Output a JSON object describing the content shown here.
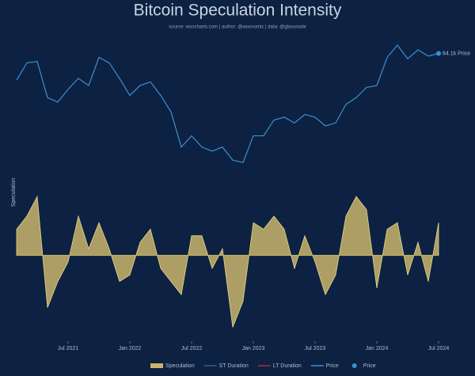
{
  "chart_data": {
    "type": "area-line",
    "title": "Bitcoin Speculation Intensity",
    "subtitle": "source: woocharts.com | author: @woonomic | data: @glassnode",
    "ylabel": "Speculation",
    "x": [
      "2021-02",
      "2021-03",
      "2021-04",
      "2021-05",
      "2021-06",
      "2021-07",
      "2021-08",
      "2021-09",
      "2021-10",
      "2021-11",
      "2021-12",
      "2022-01",
      "2022-02",
      "2022-03",
      "2022-04",
      "2022-05",
      "2022-06",
      "2022-07",
      "2022-08",
      "2022-09",
      "2022-10",
      "2022-11",
      "2022-12",
      "2023-01",
      "2023-02",
      "2023-03",
      "2023-04",
      "2023-05",
      "2023-06",
      "2023-07",
      "2023-08",
      "2023-09",
      "2023-10",
      "2023-11",
      "2023-12",
      "2024-01",
      "2024-02",
      "2024-03",
      "2024-04",
      "2024-05",
      "2024-06",
      "2024-07"
    ],
    "xticks": [
      {
        "value": "2021-07",
        "label": "Jul 2021"
      },
      {
        "value": "2022-01",
        "label": "Jan 2022"
      },
      {
        "value": "2022-07",
        "label": "Jul 2022"
      },
      {
        "value": "2023-01",
        "label": "Jan 2023"
      },
      {
        "value": "2023-07",
        "label": "Jul 2023"
      },
      {
        "value": "2024-01",
        "label": "Jan 2024"
      },
      {
        "value": "2024-07",
        "label": "Jul 2024"
      }
    ],
    "series": [
      {
        "color": "#c9b46a",
        "axis": "y",
        "values": [
          0.4,
          0.6,
          0.9,
          -0.8,
          -0.4,
          -0.1,
          0.6,
          0.1,
          0.5,
          0.1,
          -0.4,
          -0.3,
          0.2,
          0.4,
          -0.2,
          -0.4,
          -0.6,
          0.3,
          0.3,
          -0.2,
          0.1,
          -1.1,
          -0.7,
          0.5,
          0.4,
          0.6,
          0.4,
          -0.2,
          0.3,
          -0.1,
          -0.6,
          -0.3,
          0.6,
          0.9,
          0.7,
          -0.5,
          0.4,
          0.5,
          -0.3,
          0.2,
          -0.4,
          0.5
        ]
      },
      {
        "color": "#3d8fd1",
        "axis": "y2",
        "values": [
          46,
          57,
          58,
          37,
          35,
          41,
          47,
          43,
          61,
          57,
          47,
          38,
          43,
          45,
          38,
          31,
          20,
          23,
          20,
          19,
          20,
          17,
          16.5,
          23,
          23,
          28,
          29,
          27,
          30,
          29,
          26,
          27,
          34,
          37,
          42,
          43,
          61,
          71,
          60,
          67,
          62,
          64.1
        ]
      }
    ],
    "ylim": [
      -1.3,
      1.0
    ],
    "y2lim": [
      14,
      80
    ],
    "y2log": true,
    "annotation": "64.1k Price",
    "legend": [
      {
        "name": "Speculation",
        "color": "#c9b46a",
        "symbol": "area"
      },
      {
        "name": "ST Duration",
        "color": "#2e5f9a",
        "symbol": "line"
      },
      {
        "name": "LT Duration",
        "color": "#a0303a",
        "symbol": "line"
      },
      {
        "name": "Price",
        "color": "#3d8fd1",
        "symbol": "line"
      },
      {
        "name": "Price",
        "color": "#3d8fd1",
        "symbol": "dot"
      }
    ]
  }
}
